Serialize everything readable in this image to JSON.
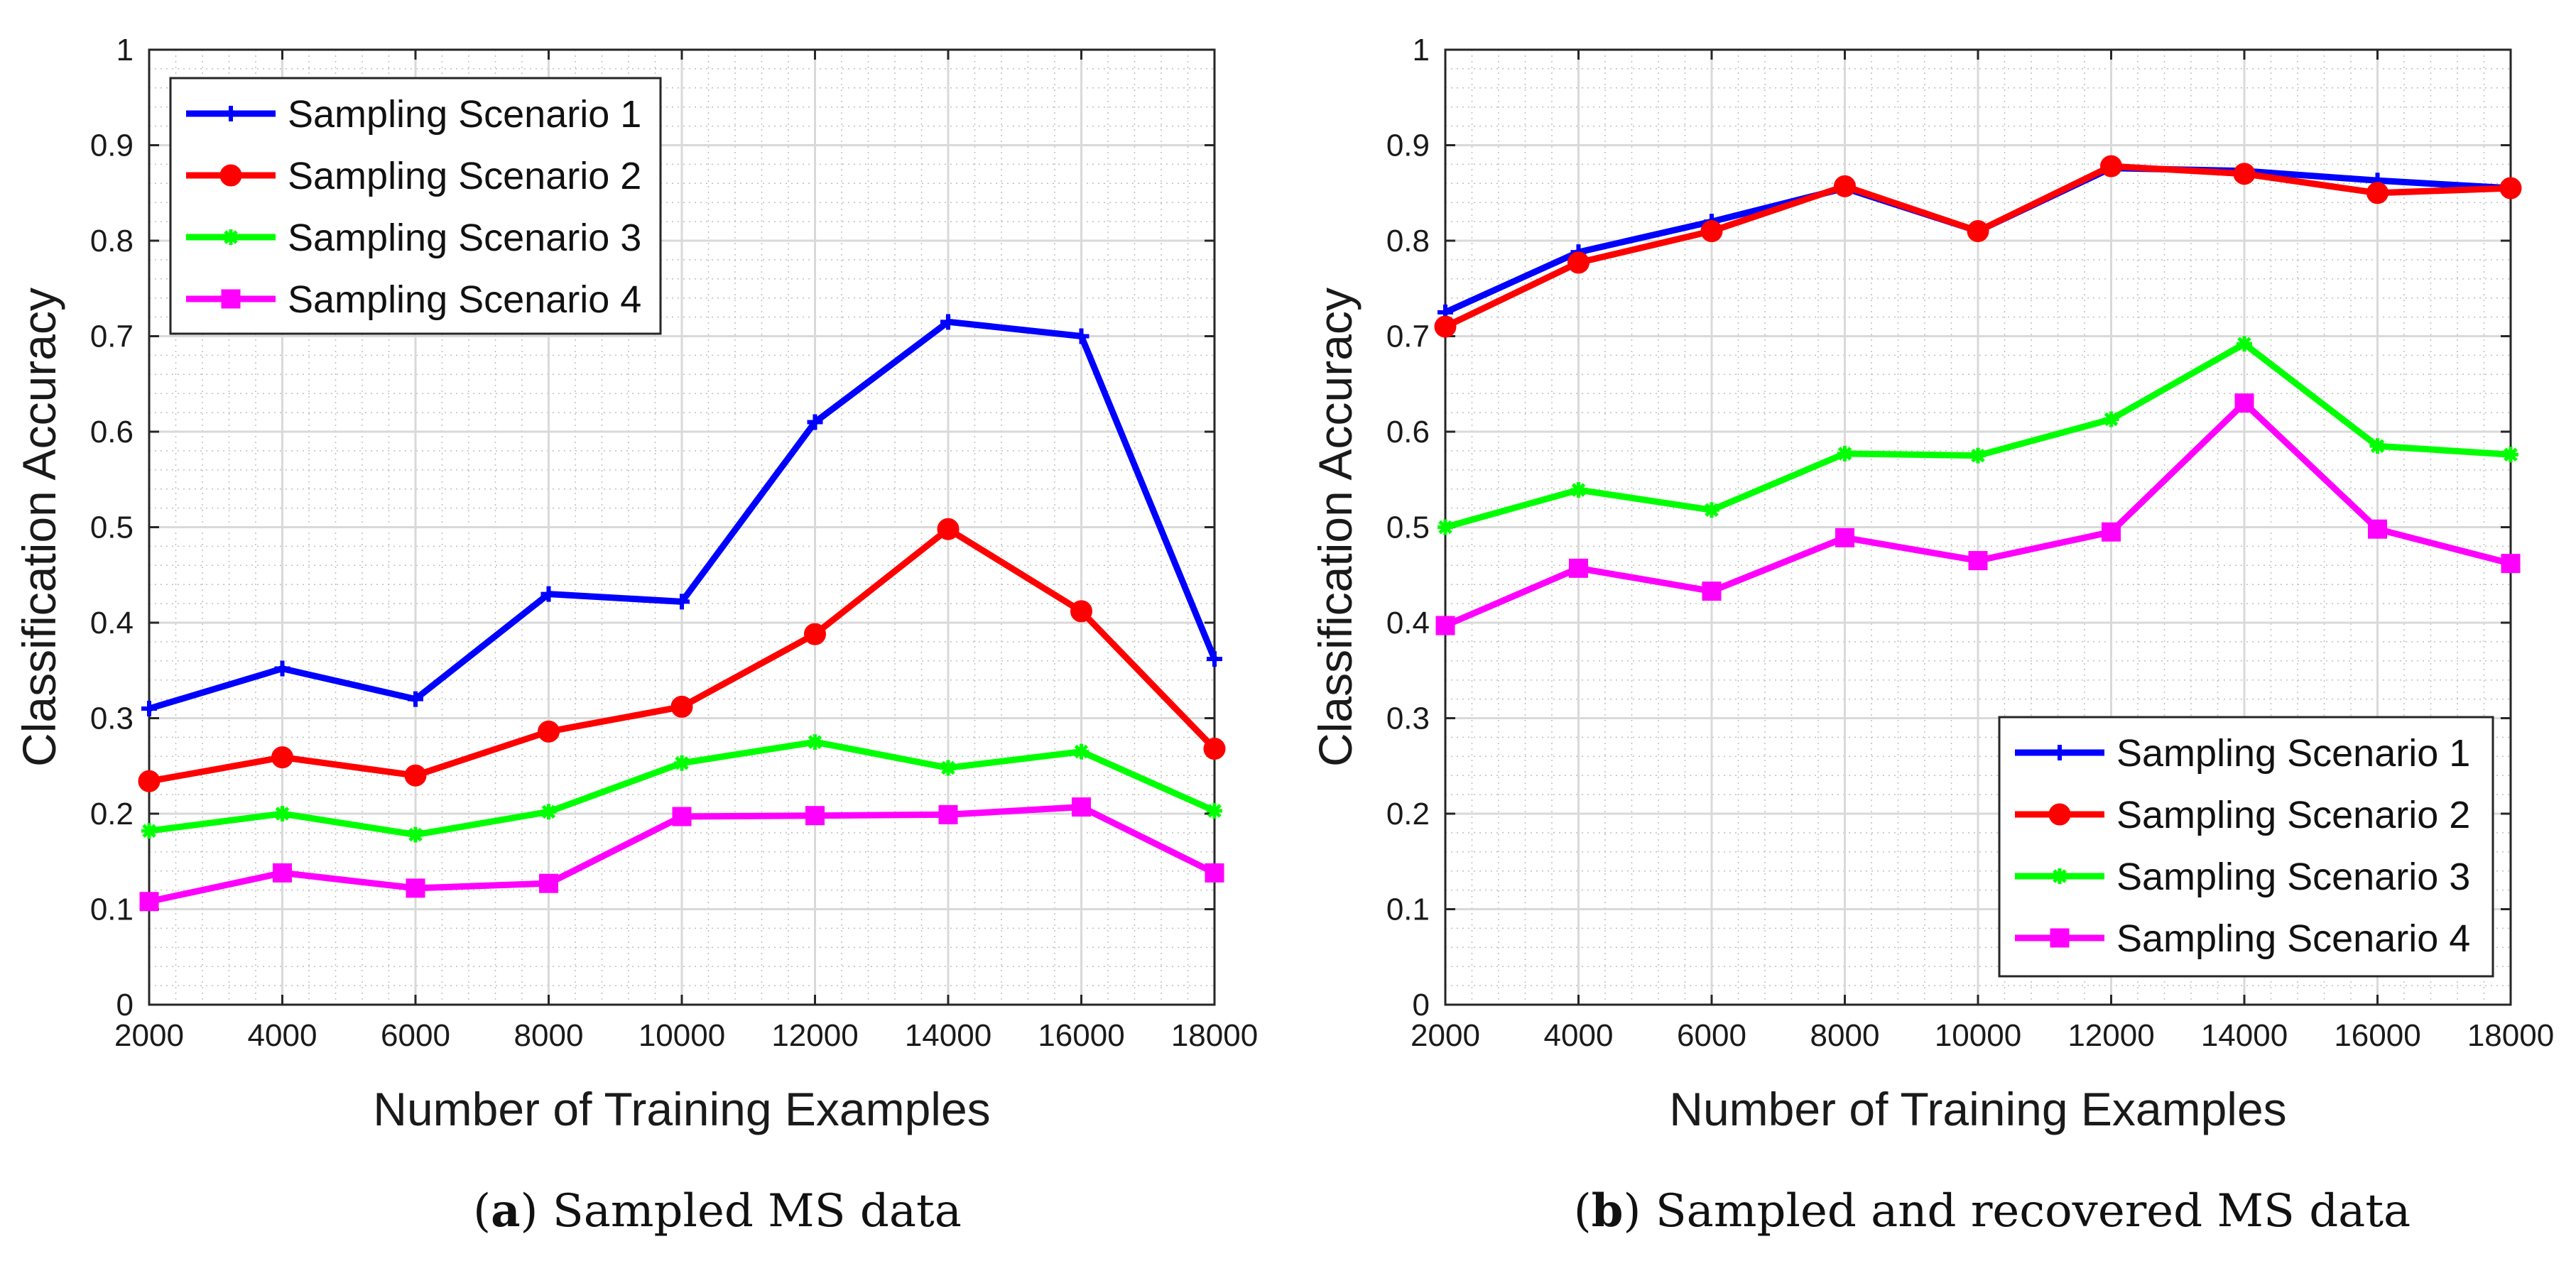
{
  "colors": {
    "scenario1": "#0000ff",
    "scenario2": "#ff0000",
    "scenario3": "#00ff00",
    "scenario4": "#ff00ff",
    "grid_major": "#d9d9d9",
    "grid_minor": "#bfbfbf",
    "axis": "#262626"
  },
  "chart_data": [
    {
      "type": "line",
      "panel_id": "a",
      "caption_label": "a",
      "caption_text": " Sampled MS data",
      "xlabel": "Number of Training Examples",
      "ylabel": "Classification Accuracy",
      "x": [
        2000,
        4000,
        6000,
        8000,
        10000,
        12000,
        14000,
        16000,
        18000
      ],
      "xticks": [
        "2000",
        "4000",
        "6000",
        "8000",
        "10000",
        "12000",
        "14000",
        "16000",
        "18000"
      ],
      "yticks": [
        "0",
        "0.1",
        "0.2",
        "0.3",
        "0.4",
        "0.5",
        "0.6",
        "0.7",
        "0.8",
        "0.9",
        "1"
      ],
      "xlim": [
        2000,
        18000
      ],
      "ylim": [
        0,
        1
      ],
      "grid": true,
      "minor_grid": true,
      "legend_location": "top-left",
      "series": [
        {
          "name": "Sampling Scenario 1",
          "color_key": "scenario1",
          "marker": "plus",
          "values": [
            0.31,
            0.352,
            0.32,
            0.43,
            0.422,
            0.61,
            0.715,
            0.7,
            0.362
          ]
        },
        {
          "name": "Sampling Scenario 2",
          "color_key": "scenario2",
          "marker": "circle",
          "values": [
            0.234,
            0.259,
            0.24,
            0.286,
            0.312,
            0.388,
            0.498,
            0.412,
            0.268
          ]
        },
        {
          "name": "Sampling Scenario 3",
          "color_key": "scenario3",
          "marker": "star",
          "values": [
            0.182,
            0.2,
            0.178,
            0.202,
            0.253,
            0.275,
            0.248,
            0.265,
            0.203
          ]
        },
        {
          "name": "Sampling Scenario 4",
          "color_key": "scenario4",
          "marker": "square",
          "values": [
            0.108,
            0.138,
            0.122,
            0.127,
            0.197,
            0.198,
            0.199,
            0.207,
            0.138
          ]
        }
      ]
    },
    {
      "type": "line",
      "panel_id": "b",
      "caption_label": "b",
      "caption_text": " Sampled and recovered MS data",
      "xlabel": "Number of Training Examples",
      "ylabel": "Classification Accuracy",
      "x": [
        2000,
        4000,
        6000,
        8000,
        10000,
        12000,
        14000,
        16000,
        18000
      ],
      "xticks": [
        "2000",
        "4000",
        "6000",
        "8000",
        "10000",
        "12000",
        "14000",
        "16000",
        "18000"
      ],
      "yticks": [
        "0",
        "0.1",
        "0.2",
        "0.3",
        "0.4",
        "0.5",
        "0.6",
        "0.7",
        "0.8",
        "0.9",
        "1"
      ],
      "xlim": [
        2000,
        18000
      ],
      "ylim": [
        0,
        1
      ],
      "grid": true,
      "minor_grid": true,
      "legend_location": "bottom-right",
      "series": [
        {
          "name": "Sampling Scenario 1",
          "color_key": "scenario1",
          "marker": "plus",
          "values": [
            0.725,
            0.788,
            0.82,
            0.855,
            0.81,
            0.876,
            0.873,
            0.863,
            0.855
          ]
        },
        {
          "name": "Sampling Scenario 2",
          "color_key": "scenario2",
          "marker": "circle",
          "values": [
            0.71,
            0.777,
            0.81,
            0.857,
            0.81,
            0.878,
            0.87,
            0.85,
            0.855
          ]
        },
        {
          "name": "Sampling Scenario 3",
          "color_key": "scenario3",
          "marker": "star",
          "values": [
            0.5,
            0.539,
            0.518,
            0.577,
            0.575,
            0.613,
            0.692,
            0.585,
            0.576
          ]
        },
        {
          "name": "Sampling Scenario 4",
          "color_key": "scenario4",
          "marker": "square",
          "values": [
            0.397,
            0.457,
            0.433,
            0.489,
            0.465,
            0.495,
            0.63,
            0.498,
            0.462
          ]
        }
      ]
    }
  ]
}
